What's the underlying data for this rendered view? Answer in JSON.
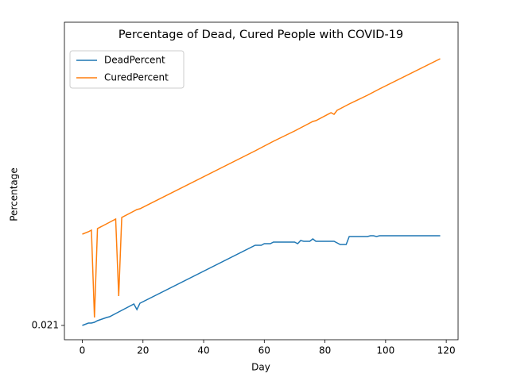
{
  "chart_data": {
    "type": "line",
    "title": "Percentage of Dead, Cured People with COVID-19",
    "x_label": "Day",
    "y_label": "Percentage",
    "x": [
      0,
      2,
      3,
      4,
      5,
      8,
      9,
      11,
      12,
      13,
      17,
      18,
      19,
      57,
      59,
      60,
      62,
      63,
      70,
      71,
      72,
      73,
      75,
      76,
      77,
      82,
      83,
      84,
      85,
      87,
      88,
      94,
      95,
      96,
      97,
      98,
      118
    ],
    "series": [
      {
        "name": "DeadPercent",
        "color": "#1f77b4",
        "values": [
          0.021,
          0.0213,
          0.0213,
          0.0214,
          0.0216,
          0.022,
          0.0221,
          0.0225,
          0.0227,
          0.0229,
          0.0237,
          0.023,
          0.0238,
          0.0311,
          0.0311,
          0.0313,
          0.0313,
          0.0315,
          0.0315,
          0.0313,
          0.0317,
          0.0316,
          0.0316,
          0.0319,
          0.0316,
          0.0316,
          0.0316,
          0.0314,
          0.0312,
          0.0312,
          0.0322,
          0.0322,
          0.0323,
          0.0323,
          0.0322,
          0.0323,
          0.0323
        ]
      },
      {
        "name": "CuredPercent",
        "color": "#ff7f0e",
        "values": [
          0.0325,
          0.0328,
          0.033,
          0.022,
          0.0332,
          0.0338,
          0.034,
          0.0344,
          0.0247,
          0.0346,
          0.0354,
          0.0356,
          0.0357,
          0.043,
          0.0434,
          0.0436,
          0.044,
          0.0442,
          0.0455,
          0.0457,
          0.0459,
          0.0461,
          0.0465,
          0.0467,
          0.0468,
          0.0478,
          0.0476,
          0.0481,
          0.0483,
          0.0487,
          0.0489,
          0.05,
          0.0502,
          0.0504,
          0.0506,
          0.0508,
          0.0546
        ]
      }
    ],
    "xlim": [
      -5.9,
      123.9
    ],
    "xticks": [
      0,
      20,
      40,
      60,
      80,
      100,
      120
    ],
    "ylim": [
      0.0192,
      0.0592
    ],
    "yticks": [
      0.021
    ],
    "legend": "upper left"
  }
}
